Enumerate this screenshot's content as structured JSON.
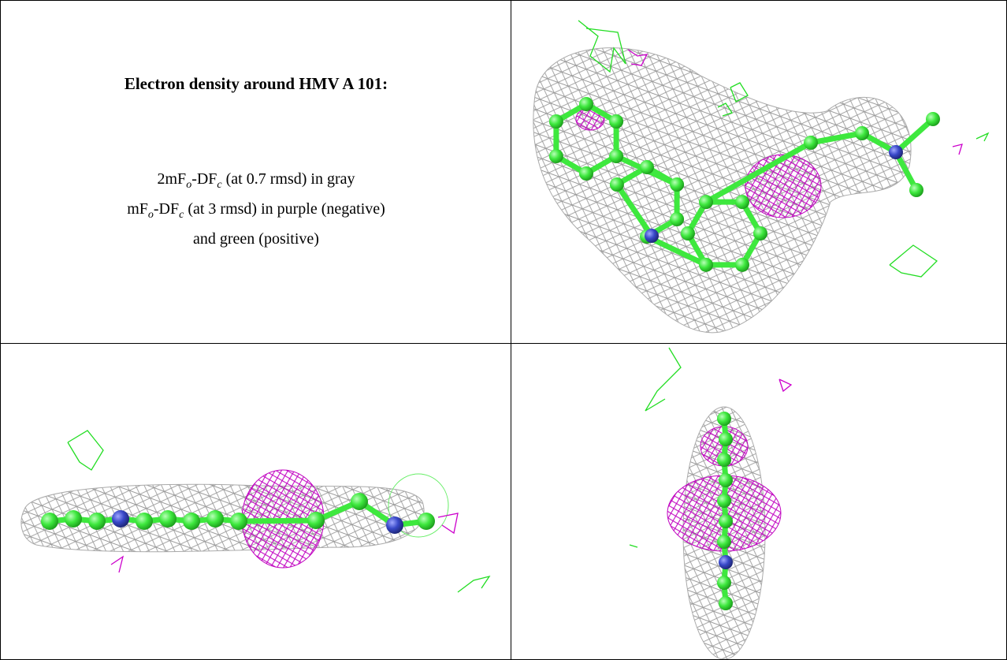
{
  "caption": {
    "title": "Electron density around HMV A 101:",
    "lines": [
      [
        "2mF",
        "o",
        "-DF",
        "c",
        " (at 0.7 rmsd) in gray"
      ],
      [
        "mF",
        "o",
        "-DF",
        "c",
        " (at 3 rmsd) in purple (negative)"
      ],
      [
        "and green (positive)"
      ]
    ]
  }
}
